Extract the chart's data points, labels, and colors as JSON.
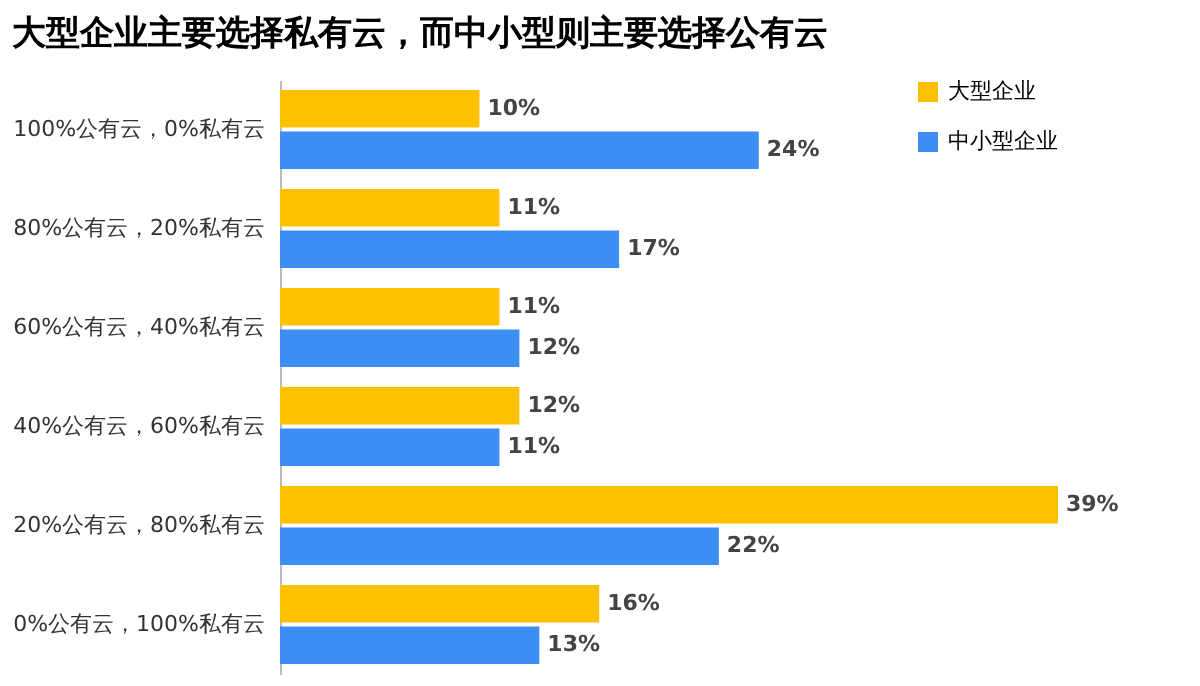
{
  "chart_data": {
    "type": "bar",
    "orientation": "horizontal",
    "title": "大型企业主要选择私有云，而中小型则主要选择公有云",
    "categories": [
      "100%公有云，0%私有云",
      "80%公有云，20%私有云",
      "60%公有云，40%私有云",
      "40%公有云，60%私有云",
      "20%公有云，80%私有云",
      "0%公有云，100%私有云"
    ],
    "series": [
      {
        "name": "大型企业",
        "color": "#ffc000",
        "values": [
          10,
          11,
          11,
          12,
          39,
          16
        ],
        "value_labels": [
          "10%",
          "11%",
          "11%",
          "12%",
          "39%",
          "16%"
        ]
      },
      {
        "name": "中小型企业",
        "color": "#3d8ef2",
        "values": [
          24,
          17,
          12,
          11,
          22,
          13
        ],
        "value_labels": [
          "24%",
          "17%",
          "12%",
          "11%",
          "22%",
          "13%"
        ]
      }
    ],
    "legend": "top right"
  }
}
